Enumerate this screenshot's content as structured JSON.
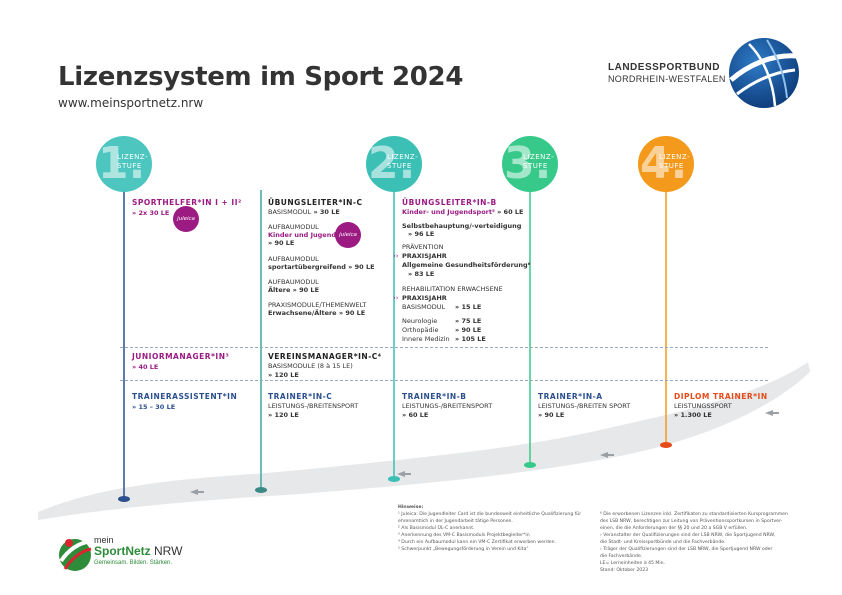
{
  "header": {
    "title": "Lizenzsystem im Sport 2024",
    "url": "www.meinsportnetz.nrw",
    "org_line1": "LANDESSPORTBUND",
    "org_line2": "NORDRHEIN-WESTFALEN"
  },
  "stages": [
    {
      "num": "1.",
      "label1": "LIZENZ-",
      "label2": "STUFE",
      "color": "#4cc6be"
    },
    {
      "num": "2.",
      "label1": "LIZENZ-",
      "label2": "STUFE",
      "color": "#3cc0b6"
    },
    {
      "num": "3.",
      "label1": "LIZENZ-",
      "label2": "STUFE",
      "color": "#36c98a"
    },
    {
      "num": "4.",
      "label1": "LIZENZ-",
      "label2": "STUFE",
      "color": "#f39a1c"
    }
  ],
  "col1": {
    "sporthelfer_title": "SPORTHELFER*IN I + II²",
    "sporthelfer_le": "» 2x 30 LE",
    "juleica": "juleica",
    "junior_title": "JUNIORMANAGER*IN³",
    "junior_le": "» 40 LE",
    "trainerassistent_title": "TRAINERASSISTENT*IN",
    "trainerassistent_le": "» 15 – 30 LE"
  },
  "col2": {
    "uebungsleiter_c_title": "ÜBUNGSLEITER*IN-C",
    "basis": "BASISMODUL",
    "basis_le": " » 30 LE",
    "aufbau1": "AUFBAUMODUL",
    "aufbau1_sub": "Kinder und Jugendliche",
    "aufbau1_le": "» 90 LE",
    "juleica": "juleica",
    "aufbau2": "AUFBAUMODUL",
    "aufbau2_sub": "sportartübergreifend",
    "aufbau2_le": " » 90 LE",
    "aufbau3": "AUFBAUMODUL",
    "aufbau3_sub": "Ältere",
    "aufbau3_le": " » 90 LE",
    "praxis": "PRAXISMODULE/THEMENWELT",
    "praxis_sub": "Erwachsene/Ältere",
    "praxis_le": " » 90 LE",
    "vereinsmanager_title": "VEREINSMANAGER*IN-C⁴",
    "vereinsmanager_sub": "BASISMODULE (8 à 15 LE)",
    "vereinsmanager_le": "» 120 LE",
    "trainer_c_title": "TRAINER*IN-C",
    "trainer_c_sub": "LEISTUNGS-/BREITENSPORT",
    "trainer_c_le": "» 120 LE"
  },
  "col3": {
    "uebungsleiter_b_title": "ÜBUNGSLEITER*IN-B",
    "kinder": "Kinder- und Jugendsport⁵",
    "kinder_le": " » 60 LE",
    "selbst": "Selbstbehauptung/-verteidigung",
    "selbst_le": "» 96 LE",
    "praevention": "PRÄVENTION",
    "praxisjahr1": "PRAXISJAHR",
    "allg": "Allgemeine Gesundheitsförderung⁶",
    "praev_le": "» 83 LE",
    "reha": "REHABILITATION ERWACHSENE",
    "praxisjahr2": "PRAXISJAHR",
    "basis": "BASISMODUL",
    "basis_le": "» 15 LE",
    "neuro": "Neurologie",
    "neuro_le": "» 75 LE",
    "ortho": "Orthopädie",
    "ortho_le": "» 90 LE",
    "innere": "Innere Medizin",
    "innere_le": "» 105 LE",
    "trainer_b_title": "TRAINER*IN-B",
    "trainer_b_sub": "LEISTUNGS-/BREITENSPORT",
    "trainer_b_le": "» 60 LE"
  },
  "col4": {
    "trainer_a_title": "TRAINER*IN-A",
    "trainer_a_sub": "LEISTUNGS-/BREITEN SPORT",
    "trainer_a_le": "» 90 LE"
  },
  "col5": {
    "diplom_title": "DIPLOM TRAINER*IN",
    "diplom_sub": "LEISTUNGSSPORT",
    "diplom_le": "» 1.300 LE"
  },
  "footnotes": {
    "heading": "Hinweise:",
    "left": [
      "¹  Juleica: Die Jugendleiter Card ist die bundesweit einheitliche Qualifizierung für",
      "    ehrenamtlich in der Jugendarbeit tätige Personen.",
      "²  Als Basismodul ÜL-C anerkannt.",
      "³  Anerkennung des VM-C Basismoduls Projektbegleiter*in",
      "⁴  Durch ein Aufbaumodul kann ein VM-C Zertifikat erworben werden.",
      "⁵  Schwerpunkt „Bewegungsförderung in Verein und Kita“"
    ],
    "right": [
      "⁶  Die erworbenen Lizenzen inkl. Zertifikaten zu standardisierten Kursprogrammen",
      "    des LSB NRW, berechtigen zur Leitung von Präventionssportkursen in Sportver-",
      "    einen, die die Anforderungen der §§ 20 und 20 a SGB V erfüllen.",
      "    ›  Veranstalter der Qualifizierungen sind der LSB NRW, die Sportjugend NRW,",
      "       die Stadt- und Kreissportbünde und die Fachverbände.",
      "    ›  Träger der Qualifizierungen sind der LSB NRW, die Sportjugend NRW oder",
      "       die Fachverbände.",
      "LE= Lerneinheiten à 45 Min.",
      "Stand: Oktober 2023"
    ]
  },
  "footer_logo": {
    "mein": "mein",
    "sportnetz": "SportNetz",
    "nrw": "NRW",
    "slogan": "Gemeinsam. Bilden. Stärken."
  },
  "colors": {
    "purple": "#9b1b82",
    "blue": "#2b4f8f",
    "orange": "#e64a18",
    "road": "#e6e8ea"
  }
}
